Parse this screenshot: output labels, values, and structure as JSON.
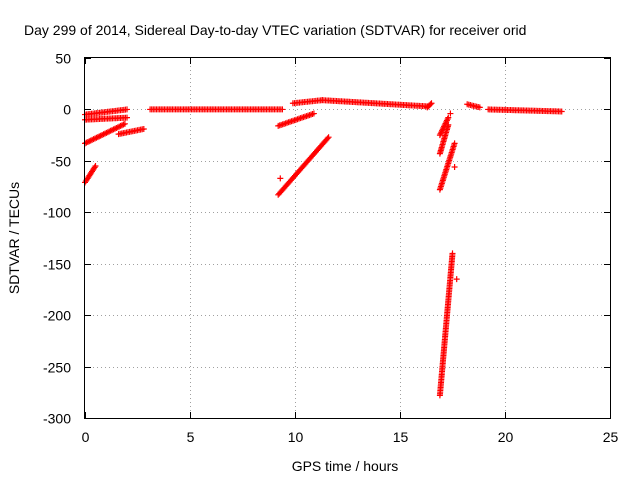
{
  "chart_data": {
    "type": "scatter",
    "title": "Day 299 of 2014, Sidereal Day-to-day VTEC variation (SDTVAR) for receiver orid",
    "xlabel": "GPS time / hours",
    "ylabel": "SDTVAR / TECUs",
    "xlim": [
      0,
      25
    ],
    "ylim": [
      -300,
      50
    ],
    "xticks": [
      0,
      5,
      10,
      15,
      20,
      25
    ],
    "yticks": [
      -300,
      -250,
      -200,
      -150,
      -100,
      -50,
      0,
      50
    ],
    "grid": true,
    "legend": "none",
    "marker": "+",
    "color": "#ff0000",
    "segments": [
      {
        "x_start": 0.0,
        "x_end": 2.0,
        "y_start": -5,
        "y_end": 0
      },
      {
        "x_start": 0.0,
        "x_end": 2.0,
        "y_start": -10,
        "y_end": -8
      },
      {
        "x_start": 0.0,
        "x_end": 1.9,
        "y_start": -33,
        "y_end": -14
      },
      {
        "x_start": 1.6,
        "x_end": 2.8,
        "y_start": -24,
        "y_end": -19
      },
      {
        "x_start": 0.0,
        "x_end": 0.5,
        "y_start": -71,
        "y_end": -55
      },
      {
        "x_start": 3.1,
        "x_end": 9.4,
        "y_start": 0,
        "y_end": 0
      },
      {
        "x_start": 9.2,
        "x_end": 10.9,
        "y_start": -16,
        "y_end": -4
      },
      {
        "x_start": 9.2,
        "x_end": 11.6,
        "y_start": -83,
        "y_end": -27
      },
      {
        "x_start": 9.9,
        "x_end": 11.3,
        "y_start": 6,
        "y_end": 9
      },
      {
        "x_start": 11.3,
        "x_end": 16.3,
        "y_start": 9,
        "y_end": 3
      },
      {
        "x_start": 16.3,
        "x_end": 16.5,
        "y_start": 2,
        "y_end": 6
      },
      {
        "x_start": 16.9,
        "x_end": 17.3,
        "y_start": -25,
        "y_end": -8
      },
      {
        "x_start": 16.9,
        "x_end": 17.3,
        "y_start": -43,
        "y_end": -15
      },
      {
        "x_start": 16.9,
        "x_end": 17.6,
        "y_start": -78,
        "y_end": -33
      },
      {
        "x_start": 16.9,
        "x_end": 17.5,
        "y_start": -278,
        "y_end": -140
      },
      {
        "x_start": 18.2,
        "x_end": 18.8,
        "y_start": 5,
        "y_end": 2
      },
      {
        "x_start": 19.2,
        "x_end": 22.7,
        "y_start": 0,
        "y_end": -2
      }
    ],
    "outliers": [
      {
        "x": 9.3,
        "y": -67
      },
      {
        "x": 17.6,
        "y": -56
      },
      {
        "x": 17.7,
        "y": -165
      },
      {
        "x": 17.4,
        "y": -4
      }
    ]
  }
}
